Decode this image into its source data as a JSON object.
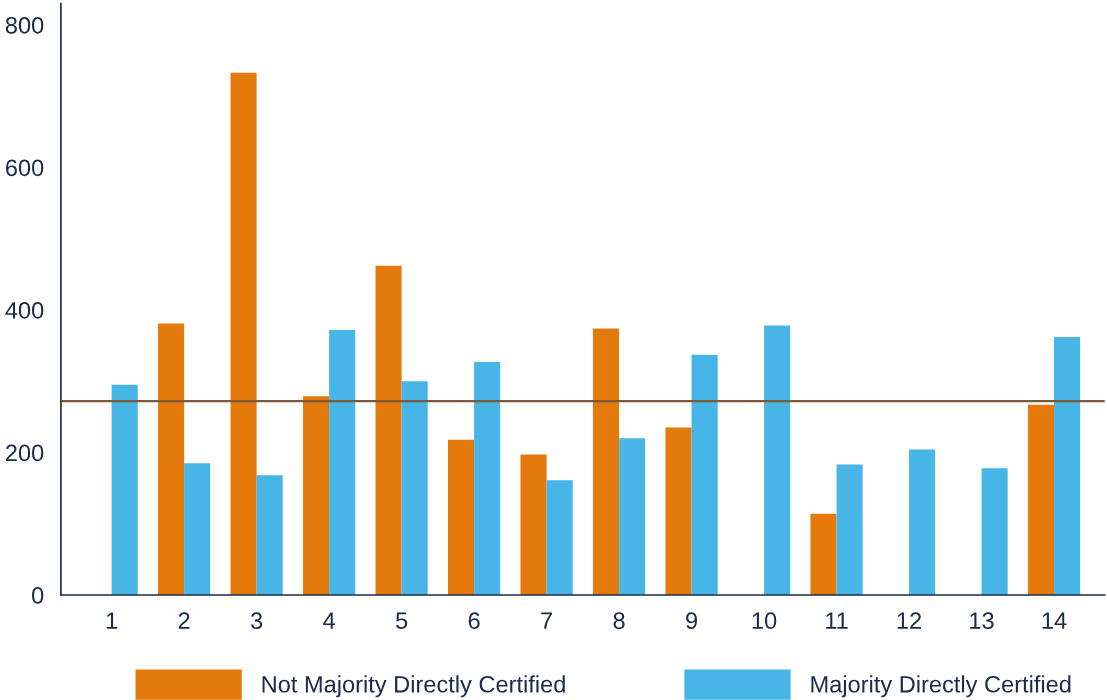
{
  "chart_data": {
    "type": "bar",
    "categories": [
      "1",
      "2",
      "3",
      "4",
      "5",
      "6",
      "7",
      "8",
      "9",
      "10",
      "11",
      "12",
      "13",
      "14"
    ],
    "series": [
      {
        "name": "Not Majority Directly Certified",
        "color": "#e47a0c",
        "values": [
          null,
          381,
          733,
          279,
          462,
          218,
          197,
          374,
          235,
          null,
          114,
          null,
          null,
          267
        ]
      },
      {
        "name": "Majority Directly Certified",
        "color": "#47b5e6",
        "values": [
          295,
          185,
          168,
          372,
          300,
          327,
          161,
          220,
          337,
          378,
          183,
          204,
          178,
          362
        ]
      }
    ],
    "ylim": [
      0,
      830
    ],
    "yticks": [
      0,
      200,
      400,
      600,
      800
    ],
    "ref_lines": [
      {
        "axis": "y",
        "value": 272,
        "color": "#7a5a3a"
      }
    ],
    "grid": false,
    "legend": "bottom"
  }
}
